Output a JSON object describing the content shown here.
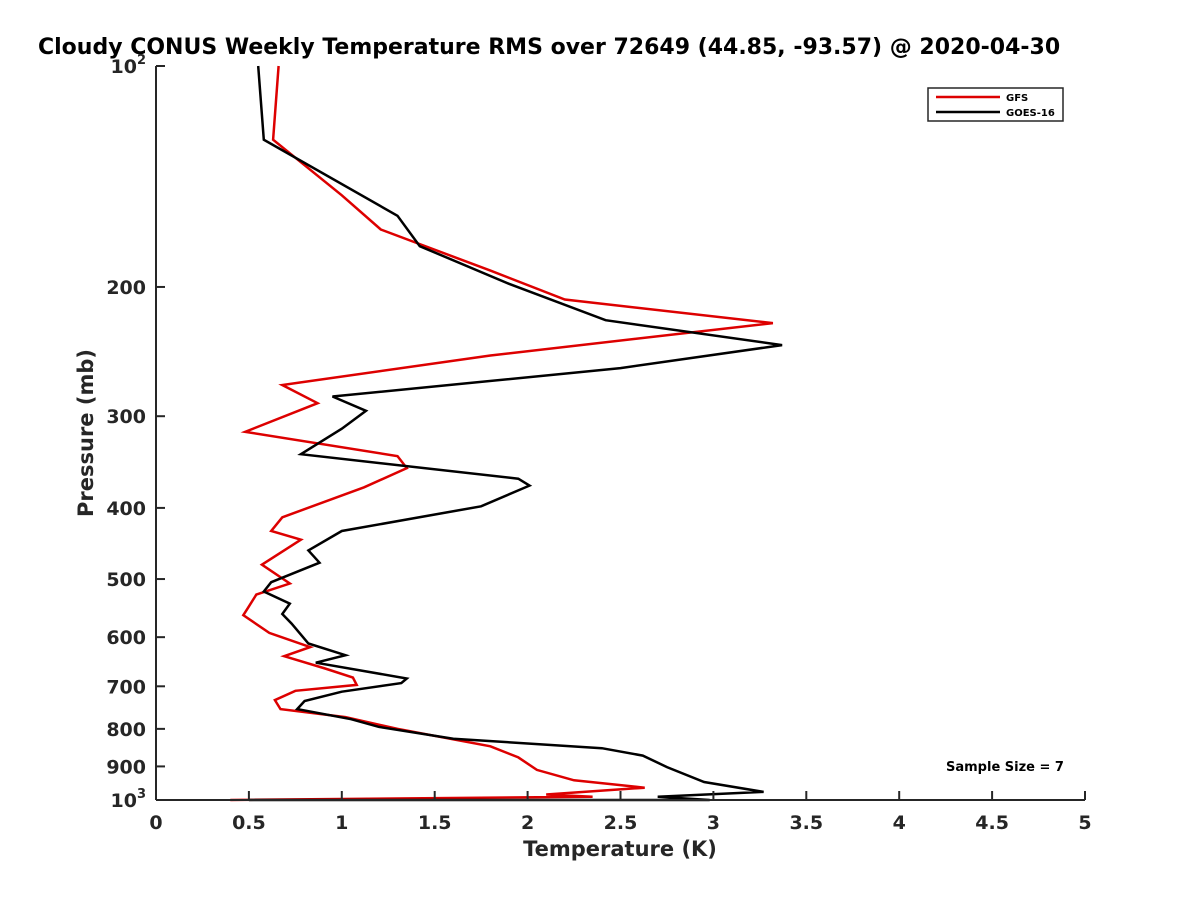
{
  "chart_data": {
    "type": "line",
    "title": "Cloudy CONUS Weekly Temperature RMS over 72649 (44.85, -93.57) @ 2020-04-30",
    "xlabel": "Temperature (K)",
    "ylabel": "Pressure (mb)",
    "xlim": [
      0,
      5
    ],
    "ylim": [
      100,
      1000
    ],
    "yscale": "log",
    "y_reversed": true,
    "xticks": [
      "0",
      "0.5",
      "1",
      "1.5",
      "2",
      "2.5",
      "3",
      "3.5",
      "4",
      "4.5",
      "5"
    ],
    "yticks": [
      {
        "value": 100,
        "label": "10",
        "sup": "2"
      },
      {
        "value": 200,
        "label": "200"
      },
      {
        "value": 300,
        "label": "300"
      },
      {
        "value": 400,
        "label": "400"
      },
      {
        "value": 500,
        "label": "500"
      },
      {
        "value": 600,
        "label": "600"
      },
      {
        "value": 700,
        "label": "700"
      },
      {
        "value": 800,
        "label": "800"
      },
      {
        "value": 900,
        "label": "900"
      },
      {
        "value": 1000,
        "label": "10",
        "sup": "3"
      }
    ],
    "grid": false,
    "legend_position": "top-right",
    "series": [
      {
        "name": "GFS",
        "color": "#dd0000",
        "points": [
          [
            0.66,
            100
          ],
          [
            0.63,
            126
          ],
          [
            1.0,
            150
          ],
          [
            1.21,
            167
          ],
          [
            1.8,
            190
          ],
          [
            2.2,
            208
          ],
          [
            3.32,
            224
          ],
          [
            1.8,
            248
          ],
          [
            0.68,
            272
          ],
          [
            0.87,
            288
          ],
          [
            0.48,
            315
          ],
          [
            1.3,
            340
          ],
          [
            1.35,
            353
          ],
          [
            1.12,
            375
          ],
          [
            0.68,
            412
          ],
          [
            0.62,
            430
          ],
          [
            0.78,
            442
          ],
          [
            0.57,
            478
          ],
          [
            0.72,
            507
          ],
          [
            0.54,
            525
          ],
          [
            0.49,
            550
          ],
          [
            0.47,
            560
          ],
          [
            0.61,
            592
          ],
          [
            0.83,
            619
          ],
          [
            0.69,
            637
          ],
          [
            0.91,
            662
          ],
          [
            1.06,
            681
          ],
          [
            1.08,
            697
          ],
          [
            0.75,
            710
          ],
          [
            0.64,
            731
          ],
          [
            0.67,
            752
          ],
          [
            1.02,
            771
          ],
          [
            1.3,
            800
          ],
          [
            1.8,
            845
          ],
          [
            1.95,
            875
          ],
          [
            2.05,
            910
          ],
          [
            2.25,
            940
          ],
          [
            2.63,
            962
          ],
          [
            2.1,
            983
          ],
          [
            2.35,
            990
          ],
          [
            0.4,
            1000
          ]
        ]
      },
      {
        "name": "GOES-16",
        "color": "#000000",
        "points": [
          [
            0.55,
            100
          ],
          [
            0.58,
            126
          ],
          [
            1.3,
            160
          ],
          [
            1.42,
            176
          ],
          [
            1.9,
            198
          ],
          [
            2.42,
            222
          ],
          [
            3.37,
            240
          ],
          [
            2.5,
            258
          ],
          [
            0.95,
            282
          ],
          [
            1.13,
            295
          ],
          [
            1.0,
            312
          ],
          [
            0.78,
            338
          ],
          [
            1.95,
            365
          ],
          [
            2.01,
            373
          ],
          [
            1.75,
            398
          ],
          [
            1.0,
            430
          ],
          [
            0.82,
            457
          ],
          [
            0.88,
            475
          ],
          [
            0.62,
            505
          ],
          [
            0.58,
            520
          ],
          [
            0.72,
            540
          ],
          [
            0.68,
            558
          ],
          [
            0.73,
            575
          ],
          [
            0.82,
            612
          ],
          [
            1.02,
            635
          ],
          [
            0.86,
            650
          ],
          [
            1.35,
            683
          ],
          [
            1.32,
            693
          ],
          [
            1.0,
            712
          ],
          [
            0.8,
            733
          ],
          [
            0.76,
            752
          ],
          [
            1.05,
            776
          ],
          [
            1.2,
            795
          ],
          [
            1.6,
            825
          ],
          [
            2.4,
            850
          ],
          [
            2.62,
            870
          ],
          [
            2.75,
            902
          ],
          [
            2.95,
            945
          ],
          [
            3.27,
            975
          ],
          [
            2.7,
            990
          ],
          [
            2.98,
            1000
          ],
          [
            0.5,
            1000
          ]
        ]
      }
    ],
    "annotations": [
      "Sample Size = 7"
    ]
  }
}
